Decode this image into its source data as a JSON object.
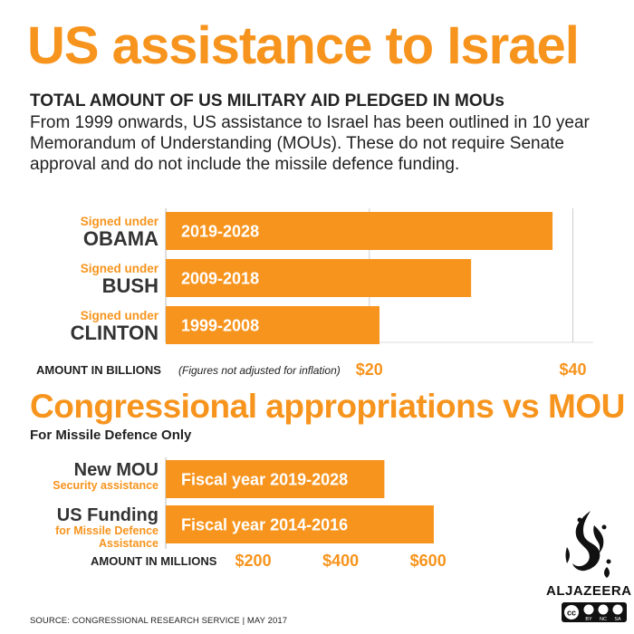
{
  "header": {
    "title": "US assistance to Israel",
    "subtitle": "TOTAL AMOUNT OF US MILITARY AID PLEDGED IN MOUs",
    "description": "From 1999 onwards, US assistance to Israel has been outlined in 10 year Memorandum of Understanding (MOUs). These do not require Senate approval and do not include the missile defence funding."
  },
  "section2": {
    "title": "Congressional appropriations vs MOU",
    "subtitle": "For Missile Defence Only"
  },
  "source": "SOURCE: CONGRESSIONAL RESEARCH SERVICE | MAY 2017",
  "logo": {
    "name": "ALJAZEERA",
    "license": "cc BY NC SA"
  },
  "colors": {
    "accent": "#f7941d",
    "text": "#222222",
    "grid": "#cccccc"
  },
  "chart_data": [
    {
      "type": "bar",
      "orientation": "horizontal",
      "categories": [
        "2019-2028",
        "2009-2018",
        "1999-2008"
      ],
      "category_notes": [
        {
          "line1": "Signed under",
          "line2": "OBAMA"
        },
        {
          "line1": "Signed under",
          "line2": "BUSH"
        },
        {
          "line1": "Signed under",
          "line2": "CLINTON"
        }
      ],
      "values": [
        38,
        30,
        21
      ],
      "xlabel": "AMOUNT IN BILLIONS",
      "xlabel_note": "(Figures not adjusted for inflation)",
      "xlim": [
        0,
        42
      ],
      "ticks": [
        20,
        40
      ],
      "tick_labels": [
        "$20",
        "$40"
      ],
      "grid": true
    },
    {
      "type": "bar",
      "orientation": "horizontal",
      "categories": [
        "Fiscal year 2019-2028",
        "Fiscal year 2014-2016"
      ],
      "category_notes": [
        {
          "line1": "New MOU",
          "line2": "Security assistance"
        },
        {
          "line1": "US Funding",
          "line2": "for Missile Defence",
          "line3": "Assistance"
        }
      ],
      "values": [
        500,
        613
      ],
      "xlabel": "AMOUNT IN MILLIONS",
      "xlim": [
        0,
        640
      ],
      "ticks": [
        200,
        400,
        600
      ],
      "tick_labels": [
        "$200",
        "$400",
        "$600"
      ],
      "grid": false
    }
  ]
}
